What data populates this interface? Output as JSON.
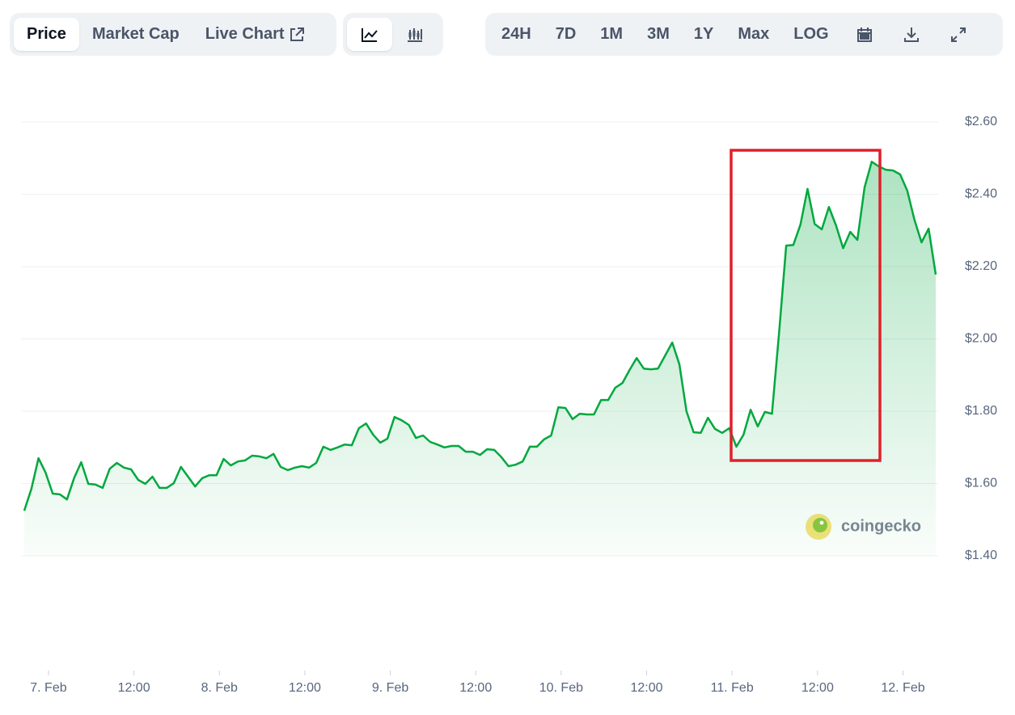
{
  "toolbar": {
    "tabs": [
      "Price",
      "Market Cap",
      "Live Chart"
    ],
    "ranges": [
      "24H",
      "7D",
      "1M",
      "3M",
      "1Y",
      "Max",
      "LOG"
    ]
  },
  "watermark": "coingecko",
  "chart_data": {
    "type": "area",
    "color": "#00a83e",
    "x": [
      -3.4,
      -2.4,
      -1.4,
      -0.4,
      0.6,
      1.6,
      2.6,
      3.6,
      4.6,
      5.6,
      6.6,
      7.6,
      8.6,
      9.6,
      10.6,
      11.6,
      12.6,
      13.6,
      14.6,
      15.6,
      16.6,
      17.6,
      18.6,
      19.6,
      20.6,
      21.6,
      22.6,
      23.6,
      24.6,
      25.6,
      26.6,
      27.6,
      28.6,
      29.6,
      30.6,
      31.6,
      32.6,
      33.6,
      34.6,
      35.6,
      36.6,
      37.6,
      38.6,
      39.6,
      40.6,
      41.6,
      42.6,
      43.6,
      44.6,
      45.6,
      46.6,
      47.6,
      48.6,
      49.6,
      50.6,
      51.6,
      52.6,
      53.6,
      54.6,
      55.6,
      56.6,
      57.6,
      58.6,
      59.6,
      60.6,
      61.6,
      62.6,
      63.6,
      64.6,
      65.6,
      66.6,
      67.6,
      68.6,
      69.6,
      70.6,
      71.6,
      72.6,
      73.6,
      74.6,
      75.6,
      76.6,
      77.6,
      78.6,
      79.6,
      80.6,
      81.6,
      82.6,
      83.6,
      84.6,
      85.6,
      86.6,
      87.6,
      88.6,
      89.6,
      90.6,
      91.6,
      92.6,
      93.6,
      94.6,
      95.6,
      96.6,
      97.6,
      98.6,
      99.6,
      100.6,
      101.6,
      102.6,
      103.6,
      104.6,
      105.6,
      106.6,
      107.6,
      108.6,
      109.6,
      110.6,
      111.6,
      112.6,
      113.6,
      114.6,
      115.6,
      116.6,
      117.6,
      118.6,
      119.6,
      120.6,
      121.6,
      122.6,
      123.6,
      124.6
    ],
    "values": [
      1.525,
      1.585,
      1.67,
      1.63,
      1.572,
      1.57,
      1.556,
      1.615,
      1.659,
      1.599,
      1.597,
      1.588,
      1.641,
      1.657,
      1.644,
      1.639,
      1.61,
      1.599,
      1.619,
      1.588,
      1.588,
      1.601,
      1.646,
      1.619,
      1.592,
      1.615,
      1.623,
      1.623,
      1.668,
      1.65,
      1.661,
      1.664,
      1.677,
      1.675,
      1.67,
      1.682,
      1.646,
      1.637,
      1.644,
      1.648,
      1.644,
      1.657,
      1.702,
      1.693,
      1.7,
      1.708,
      1.706,
      1.753,
      1.766,
      1.735,
      1.713,
      1.724,
      1.784,
      1.775,
      1.762,
      1.726,
      1.733,
      1.715,
      1.708,
      1.7,
      1.704,
      1.704,
      1.688,
      1.688,
      1.679,
      1.695,
      1.693,
      1.673,
      1.648,
      1.652,
      1.661,
      1.702,
      1.702,
      1.722,
      1.733,
      1.811,
      1.809,
      1.778,
      1.793,
      1.791,
      1.791,
      1.831,
      1.831,
      1.865,
      1.878,
      1.914,
      1.947,
      1.918,
      1.916,
      1.918,
      1.954,
      1.99,
      1.93,
      1.8,
      1.742,
      1.74,
      1.782,
      1.751,
      1.74,
      1.753,
      1.702,
      1.735,
      1.804,
      1.758,
      1.798,
      1.793,
      2.017,
      2.258,
      2.26,
      2.316,
      2.415,
      2.318,
      2.303,
      2.365,
      2.314,
      2.251,
      2.296,
      2.274,
      2.419,
      2.49,
      2.477,
      2.468,
      2.466,
      2.455,
      2.41,
      2.33,
      2.267,
      2.305,
      2.178
    ],
    "xlim": [
      -3.4,
      124.6
    ],
    "xticks": [
      {
        "value": 0,
        "label": "7. Feb"
      },
      {
        "value": 12,
        "label": "12:00"
      },
      {
        "value": 24,
        "label": "8. Feb"
      },
      {
        "value": 36,
        "label": "12:00"
      },
      {
        "value": 48,
        "label": "9. Feb"
      },
      {
        "value": 60,
        "label": "12:00"
      },
      {
        "value": 72,
        "label": "10. Feb"
      },
      {
        "value": 84,
        "label": "12:00"
      },
      {
        "value": 96,
        "label": "11. Feb"
      },
      {
        "value": 108,
        "label": "12:00"
      },
      {
        "value": 120,
        "label": "12. Feb"
      }
    ],
    "ylim": [
      1.4,
      2.6
    ],
    "yticks": [
      {
        "value": 1.4,
        "label": "$1.40"
      },
      {
        "value": 1.6,
        "label": "$1.60"
      },
      {
        "value": 1.8,
        "label": "$1.80"
      },
      {
        "value": 2.0,
        "label": "$2.00"
      },
      {
        "value": 2.2,
        "label": "$2.20"
      },
      {
        "value": 2.4,
        "label": "$2.40"
      },
      {
        "value": 2.6,
        "label": "$2.60"
      }
    ],
    "grid": true
  }
}
